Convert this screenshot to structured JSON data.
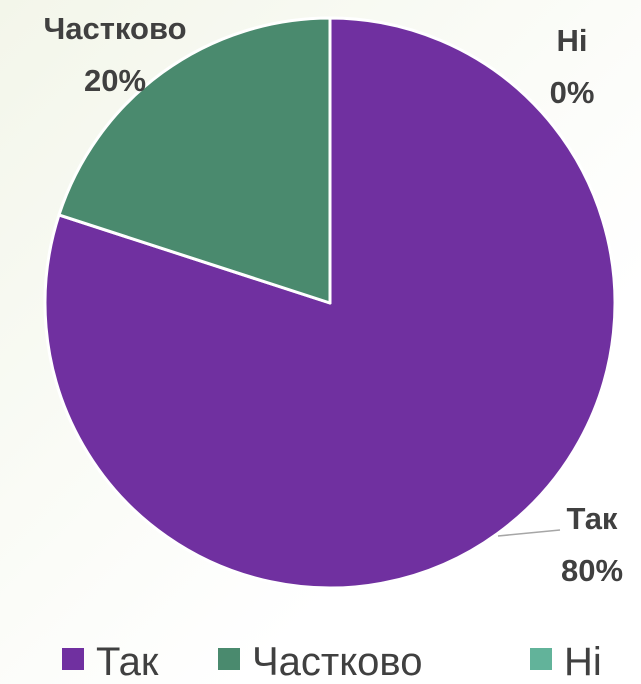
{
  "chart_data": {
    "type": "pie",
    "categories": [
      "Так",
      "Частково",
      "Ні"
    ],
    "values": [
      80,
      20,
      0
    ],
    "value_labels": [
      "80%",
      "20%",
      "0%"
    ],
    "colors": [
      "#7030a0",
      "#4a8a6e",
      "#62b39a"
    ],
    "legend": "bottom"
  }
}
